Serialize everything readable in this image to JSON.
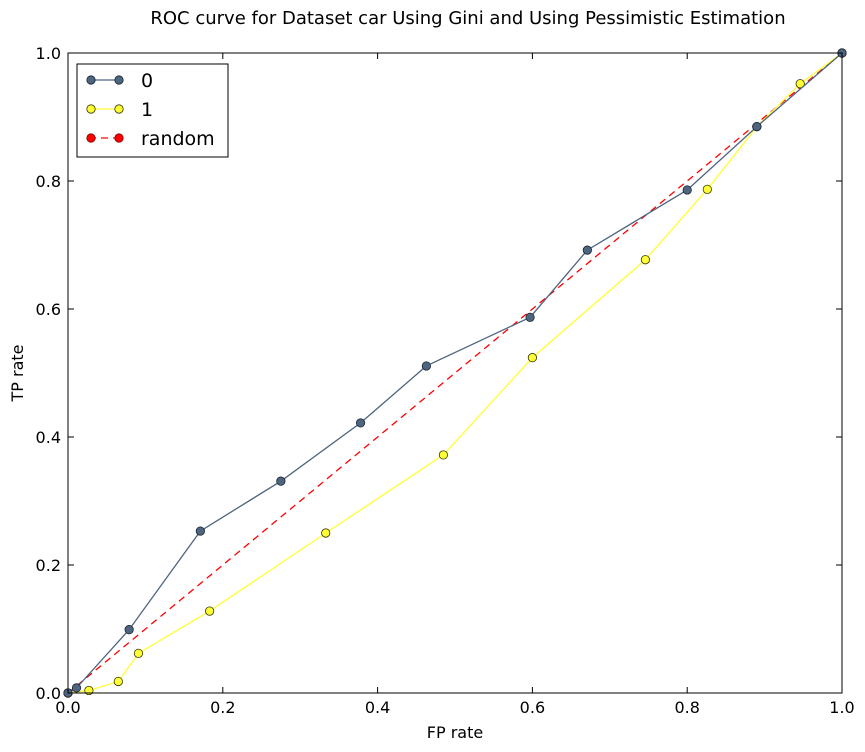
{
  "chart_data": {
    "type": "line",
    "title": "ROC curve for Dataset car Using Gini and Using Pessimistic Estimation",
    "xlabel": "FP rate",
    "ylabel": "TP rate",
    "xlim": [
      0.0,
      1.0
    ],
    "ylim": [
      0.0,
      1.0
    ],
    "xticks": [
      "0.0",
      "0.2",
      "0.4",
      "0.6",
      "0.8",
      "1.0"
    ],
    "yticks": [
      "0.0",
      "0.2",
      "0.4",
      "0.6",
      "0.8",
      "1.0"
    ],
    "grid": false,
    "legend_position": "top-left",
    "series": [
      {
        "name": "0",
        "color": "#4e6580",
        "line_style": "solid",
        "marker": "circle",
        "x": [
          0.0,
          0.011,
          0.079,
          0.171,
          0.275,
          0.378,
          0.463,
          0.597,
          0.671,
          0.8,
          0.89,
          1.0
        ],
        "y": [
          0.0,
          0.008,
          0.099,
          0.253,
          0.331,
          0.422,
          0.511,
          0.587,
          0.692,
          0.786,
          0.885,
          1.0
        ]
      },
      {
        "name": "1",
        "color": "#ffff33",
        "line_style": "solid",
        "marker": "circle",
        "x": [
          0.0,
          0.027,
          0.065,
          0.091,
          0.183,
          0.333,
          0.485,
          0.6,
          0.746,
          0.826,
          0.89,
          0.946,
          1.0
        ],
        "y": [
          0.0,
          0.004,
          0.018,
          0.062,
          0.128,
          0.25,
          0.372,
          0.524,
          0.677,
          0.787,
          0.885,
          0.952,
          1.0
        ]
      },
      {
        "name": "random",
        "color": "#ff0000",
        "line_style": "dashed",
        "marker": "circle",
        "x": [
          0.0,
          1.0
        ],
        "y": [
          0.0,
          1.0
        ]
      }
    ]
  }
}
